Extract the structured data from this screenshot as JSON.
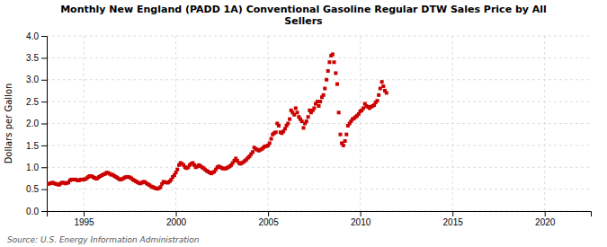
{
  "chart_data": {
    "type": "scatter",
    "title": "Monthly New England (PADD 1A) Conventional Gasoline Regular DTW Sales Price by All\nSellers",
    "y_label": "Dollars per Gallon",
    "source": "Source: U.S. Energy Information Administration",
    "color": "#cc0000",
    "marker": "square",
    "grid": true,
    "xlim": [
      1993.0,
      2022.5
    ],
    "ylim": [
      0.0,
      4.0
    ],
    "xticks": [
      1995,
      2000,
      2005,
      2010,
      2015,
      2020
    ],
    "yticks": [
      {
        "value": 0.0,
        "label": "0.0"
      },
      0.5,
      {
        "value": 1.0,
        "label": "1.0"
      },
      1.5,
      {
        "value": 2.0,
        "label": "2.0"
      },
      2.5,
      {
        "value": 3.0,
        "label": "3.0"
      },
      3.5,
      {
        "value": 4.0,
        "label": "4.0"
      }
    ],
    "x": [
      1993.08,
      1993.17,
      1993.25,
      1993.33,
      1993.42,
      1993.5,
      1993.58,
      1993.67,
      1993.75,
      1993.83,
      1993.92,
      1994.0,
      1994.08,
      1994.17,
      1994.25,
      1994.33,
      1994.42,
      1994.5,
      1994.58,
      1994.67,
      1994.75,
      1994.83,
      1994.92,
      1995.0,
      1995.08,
      1995.17,
      1995.25,
      1995.33,
      1995.42,
      1995.5,
      1995.58,
      1995.67,
      1995.75,
      1995.83,
      1995.92,
      1996.0,
      1996.08,
      1996.17,
      1996.25,
      1996.33,
      1996.42,
      1996.5,
      1996.58,
      1996.67,
      1996.75,
      1996.83,
      1996.92,
      1997.0,
      1997.08,
      1997.17,
      1997.25,
      1997.33,
      1997.42,
      1997.5,
      1997.58,
      1997.67,
      1997.75,
      1997.83,
      1997.92,
      1998.0,
      1998.08,
      1998.17,
      1998.25,
      1998.33,
      1998.42,
      1998.5,
      1998.58,
      1998.67,
      1998.75,
      1998.83,
      1998.92,
      1999.0,
      1999.08,
      1999.17,
      1999.25,
      1999.33,
      1999.42,
      1999.5,
      1999.58,
      1999.67,
      1999.75,
      1999.83,
      1999.92,
      2000.0,
      2000.08,
      2000.17,
      2000.25,
      2000.33,
      2000.42,
      2000.5,
      2000.58,
      2000.67,
      2000.75,
      2000.83,
      2000.92,
      2001.0,
      2001.08,
      2001.17,
      2001.25,
      2001.33,
      2001.42,
      2001.5,
      2001.58,
      2001.67,
      2001.75,
      2001.83,
      2001.92,
      2002.0,
      2002.08,
      2002.17,
      2002.25,
      2002.33,
      2002.42,
      2002.5,
      2002.58,
      2002.67,
      2002.75,
      2002.83,
      2002.92,
      2003.0,
      2003.08,
      2003.17,
      2003.25,
      2003.33,
      2003.42,
      2003.5,
      2003.58,
      2003.67,
      2003.75,
      2003.83,
      2003.92,
      2004.0,
      2004.08,
      2004.17,
      2004.25,
      2004.33,
      2004.42,
      2004.5,
      2004.58,
      2004.67,
      2004.75,
      2004.83,
      2004.92,
      2005.0,
      2005.08,
      2005.17,
      2005.25,
      2005.33,
      2005.42,
      2005.5,
      2005.58,
      2005.67,
      2005.75,
      2005.83,
      2005.92,
      2006.0,
      2006.08,
      2006.17,
      2006.25,
      2006.33,
      2006.42,
      2006.5,
      2006.58,
      2006.67,
      2006.75,
      2006.83,
      2006.92,
      2007.0,
      2007.08,
      2007.17,
      2007.25,
      2007.33,
      2007.42,
      2007.5,
      2007.58,
      2007.67,
      2007.75,
      2007.83,
      2007.92,
      2008.0,
      2008.08,
      2008.17,
      2008.25,
      2008.33,
      2008.42,
      2008.5,
      2008.58,
      2008.67,
      2008.75,
      2008.83,
      2008.92,
      2009.0,
      2009.08,
      2009.17,
      2009.25,
      2009.33,
      2009.42,
      2009.5,
      2009.58,
      2009.67,
      2009.75,
      2009.83,
      2009.92,
      2010.0,
      2010.08,
      2010.17,
      2010.25,
      2010.33,
      2010.42,
      2010.5,
      2010.58,
      2010.67,
      2010.75,
      2010.83,
      2010.92,
      2011.0,
      2011.08,
      2011.17,
      2011.25,
      2011.33,
      2011.42
    ],
    "values": [
      0.62,
      0.63,
      0.64,
      0.65,
      0.63,
      0.62,
      0.61,
      0.6,
      0.63,
      0.65,
      0.65,
      0.63,
      0.64,
      0.65,
      0.7,
      0.72,
      0.72,
      0.72,
      0.72,
      0.7,
      0.7,
      0.72,
      0.72,
      0.72,
      0.73,
      0.75,
      0.78,
      0.8,
      0.8,
      0.78,
      0.76,
      0.74,
      0.75,
      0.78,
      0.8,
      0.82,
      0.84,
      0.85,
      0.88,
      0.87,
      0.85,
      0.83,
      0.83,
      0.8,
      0.78,
      0.76,
      0.73,
      0.72,
      0.73,
      0.75,
      0.77,
      0.78,
      0.78,
      0.77,
      0.75,
      0.72,
      0.7,
      0.68,
      0.66,
      0.64,
      0.63,
      0.65,
      0.67,
      0.66,
      0.63,
      0.61,
      0.59,
      0.56,
      0.55,
      0.53,
      0.52,
      0.51,
      0.52,
      0.55,
      0.62,
      0.67,
      0.66,
      0.65,
      0.65,
      0.68,
      0.72,
      0.78,
      0.82,
      0.88,
      0.95,
      1.05,
      1.1,
      1.08,
      1.05,
      1.0,
      0.98,
      1.0,
      1.05,
      1.08,
      1.1,
      1.05,
      1.0,
      1.02,
      1.05,
      1.03,
      1.0,
      0.98,
      0.95,
      0.92,
      0.9,
      0.88,
      0.86,
      0.88,
      0.9,
      0.95,
      1.0,
      1.02,
      1.0,
      0.98,
      0.97,
      0.97,
      0.98,
      1.0,
      1.02,
      1.05,
      1.1,
      1.15,
      1.2,
      1.15,
      1.1,
      1.08,
      1.1,
      1.12,
      1.15,
      1.18,
      1.22,
      1.25,
      1.3,
      1.35,
      1.45,
      1.42,
      1.4,
      1.38,
      1.4,
      1.42,
      1.45,
      1.48,
      1.48,
      1.5,
      1.55,
      1.65,
      1.75,
      1.78,
      1.8,
      2.0,
      1.95,
      1.8,
      1.78,
      1.82,
      1.88,
      1.95,
      2.0,
      2.1,
      2.3,
      2.25,
      2.2,
      2.35,
      2.25,
      2.15,
      2.1,
      2.05,
      1.9,
      2.0,
      2.05,
      2.15,
      2.3,
      2.25,
      2.3,
      2.35,
      2.45,
      2.5,
      2.4,
      2.5,
      2.6,
      2.65,
      2.8,
      3.0,
      3.2,
      3.4,
      3.55,
      3.58,
      3.4,
      3.15,
      2.9,
      2.25,
      1.75,
      1.55,
      1.5,
      1.6,
      1.75,
      1.95,
      2.0,
      2.05,
      2.1,
      2.12,
      2.15,
      2.18,
      2.22,
      2.28,
      2.3,
      2.35,
      2.45,
      2.4,
      2.38,
      2.35,
      2.38,
      2.4,
      2.42,
      2.48,
      2.52,
      2.65,
      2.8,
      2.95,
      2.85,
      2.75,
      2.7
    ]
  }
}
